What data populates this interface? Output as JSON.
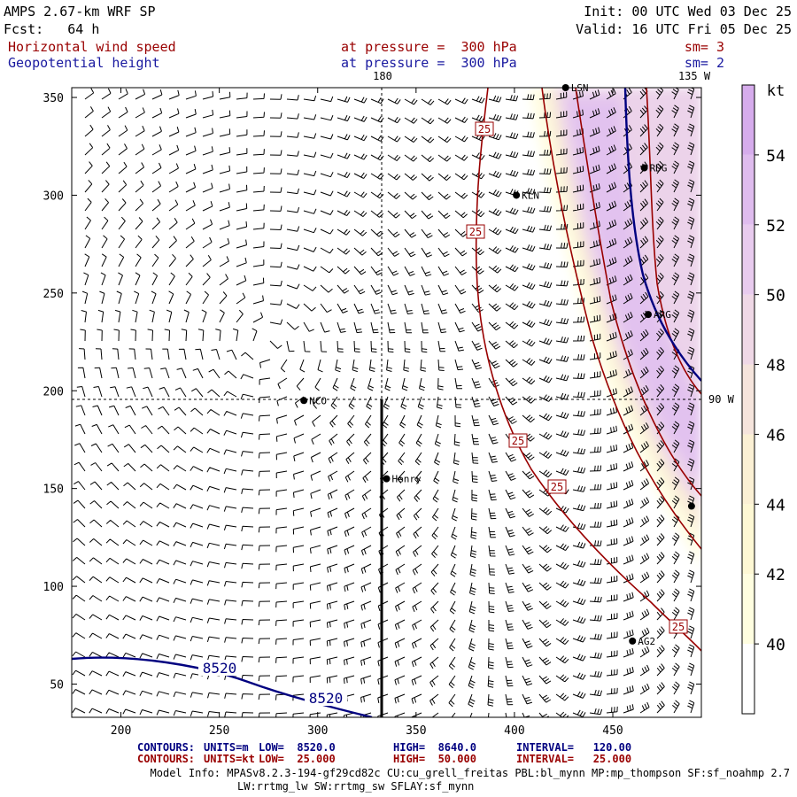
{
  "header": {
    "model_title": "AMPS 2.67-km WRF SP",
    "forecast_hour": "Fcst:   64 h",
    "init_time": "Init: 00 UTC Wed 03 Dec 25",
    "valid_time": "Valid: 16 UTC Fri 05 Dec 25",
    "field1_name": "Horizontal wind speed",
    "field1_level": "at pressure =  300 hPa",
    "field1_smooth": "sm= 3",
    "field2_name": "Geopotential height",
    "field2_level": "at pressure =  300 hPa",
    "field2_smooth": "sm= 2"
  },
  "map": {
    "meridian_labels": [
      "180",
      "135 W",
      "90 W"
    ],
    "stations": [
      {
        "name": "LSN",
        "x": 426,
        "y": 355
      },
      {
        "name": "RDG",
        "x": 466,
        "y": 314
      },
      {
        "name": "KLN",
        "x": 401,
        "y": 300
      },
      {
        "name": "ARG",
        "x": 468,
        "y": 239
      },
      {
        "name": "NCO",
        "x": 293,
        "y": 195
      },
      {
        "name": "Henry",
        "x": 335,
        "y": 155
      },
      {
        "name": "AG2",
        "x": 460,
        "y": 72
      },
      {
        "name": "",
        "x": 490,
        "y": 141
      }
    ],
    "wind_contour_labels": [
      "25",
      "25",
      "25",
      "25",
      "25"
    ],
    "height_contour_labels": [
      "8520",
      "8520"
    ]
  },
  "chart_data": {
    "type": "heatmap",
    "title": "Horizontal wind speed / Geopotential height at 300 hPa",
    "x_ticks": [
      200,
      250,
      300,
      350,
      400,
      450
    ],
    "y_ticks": [
      50,
      100,
      150,
      200,
      250,
      300,
      350
    ],
    "xlim": [
      175,
      495
    ],
    "ylim": [
      33,
      355
    ],
    "grid": false,
    "colorbar": {
      "unit": "kt",
      "levels": [
        38,
        40,
        42,
        44,
        46,
        48,
        50,
        52,
        54,
        56
      ],
      "tick_labels": [
        "40",
        "42",
        "44",
        "46",
        "48",
        "50",
        "52",
        "54"
      ],
      "colors": [
        "#ffffff",
        "#fffee0",
        "#fef8d4",
        "#fbf0d4",
        "#f5e4dc",
        "#efd8e6",
        "#e8cbee",
        "#dfbcee",
        "#d6acec"
      ]
    },
    "wind_speed_contours": {
      "values": [
        25,
        50
      ],
      "interval": 25,
      "color": "#990000"
    },
    "height_contours": {
      "values": [
        8520
      ],
      "interval": 120,
      "color": "#000080"
    }
  },
  "footer": {
    "contours_line1": {
      "label": "CONTOURS:",
      "units": "UNITS=m",
      "low": "LOW=  8520.0",
      "high": "HIGH=  8640.0",
      "interval": "INTERVAL=   120.00"
    },
    "contours_line2": {
      "label": "CONTOURS:",
      "units": "UNITS=kt",
      "low": "LOW=  25.000",
      "high": "HIGH=  50.000",
      "interval": "INTERVAL=   25.000"
    },
    "model_info_1": "Model Info: MPASv8.2.3-194-gf29cd82c CU:cu_grell_freitas PBL:bl_mynn MP:mp_thompson SF:sf_noahmp 2.7",
    "model_info_2": "LW:rrtmg_lw SW:rrtmg_sw SFLAY:sf_mynn"
  }
}
